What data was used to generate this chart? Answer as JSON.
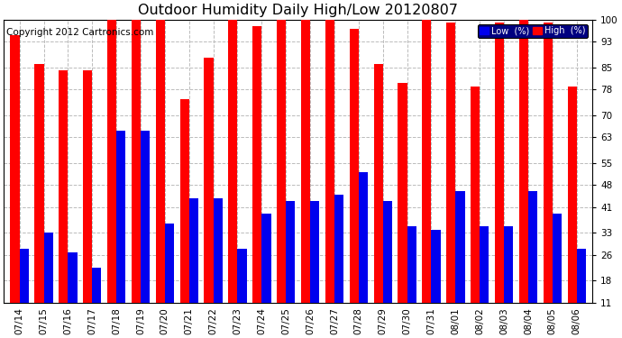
{
  "title": "Outdoor Humidity Daily High/Low 20120807",
  "copyright": "Copyright 2012 Cartronics.com",
  "legend_low": "Low  (%)",
  "legend_high": "High  (%)",
  "dates": [
    "07/14",
    "07/15",
    "07/16",
    "07/17",
    "07/18",
    "07/19",
    "07/20",
    "07/21",
    "07/22",
    "07/23",
    "07/24",
    "07/25",
    "07/26",
    "07/27",
    "07/28",
    "07/29",
    "07/30",
    "07/31",
    "08/01",
    "08/02",
    "08/03",
    "08/04",
    "08/05",
    "08/06"
  ],
  "high_vals": [
    95,
    86,
    84,
    84,
    100,
    100,
    100,
    75,
    88,
    100,
    98,
    100,
    100,
    100,
    97,
    86,
    80,
    100,
    99,
    79,
    99,
    100,
    99,
    79
  ],
  "low_vals": [
    28,
    33,
    27,
    22,
    65,
    65,
    36,
    44,
    44,
    28,
    39,
    43,
    43,
    45,
    52,
    43,
    35,
    34,
    46,
    35,
    35,
    46,
    39,
    28
  ],
  "ylim_min": 11,
  "ylim_max": 100,
  "yticks": [
    11,
    18,
    26,
    33,
    41,
    48,
    55,
    63,
    70,
    78,
    85,
    93,
    100
  ],
  "bar_color_high": "#FF0000",
  "bar_color_low": "#0000EE",
  "background_color": "#FFFFFF",
  "grid_color": "#BBBBBB",
  "title_fontsize": 11.5,
  "copyright_fontsize": 7.5,
  "tick_fontsize": 7.5,
  "bar_width": 0.38,
  "legend_bg": "#000080"
}
